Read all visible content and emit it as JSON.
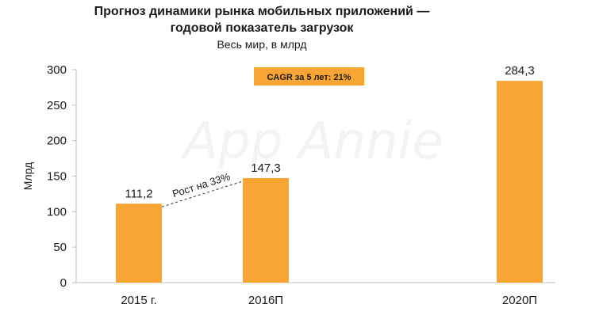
{
  "chart_data": {
    "type": "bar",
    "title_lines": [
      "Прогноз динамики рынка мобильных приложений —",
      "годовой показатель загрузок"
    ],
    "subtitle": "Весь мир, в млрд",
    "ylabel": "Млрд",
    "ylim": [
      0,
      300
    ],
    "yticks": [
      0,
      50,
      100,
      150,
      200,
      250,
      300
    ],
    "categories": [
      "2015 г.",
      "2016П",
      "2020П"
    ],
    "values": [
      111.2,
      147.3,
      284.3
    ],
    "value_labels": [
      "111,2",
      "147,3",
      "284,3"
    ],
    "bar_color": "#f7a635",
    "cagr_label": "CAGR за 5 лет: 21%",
    "cagr_color": "#f7a635",
    "growth_annotation": "Рост на 33%",
    "watermark": "App Annie",
    "grid": false
  }
}
